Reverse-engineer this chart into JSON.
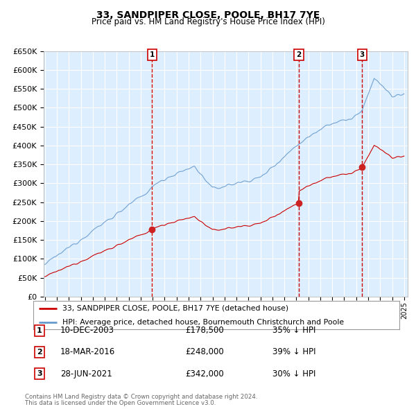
{
  "title": "33, SANDPIPER CLOSE, POOLE, BH17 7YE",
  "subtitle": "Price paid vs. HM Land Registry's House Price Index (HPI)",
  "ylim": [
    0,
    650000
  ],
  "yticks": [
    0,
    50000,
    100000,
    150000,
    200000,
    250000,
    300000,
    350000,
    400000,
    450000,
    500000,
    550000,
    600000,
    650000
  ],
  "ytick_labels": [
    "£0",
    "£50K",
    "£100K",
    "£150K",
    "£200K",
    "£250K",
    "£300K",
    "£350K",
    "£400K",
    "£450K",
    "£500K",
    "£550K",
    "£600K",
    "£650K"
  ],
  "xlim_start": 1994.9,
  "xlim_end": 2025.3,
  "background_color": "#ddeeff",
  "grid_color": "#ffffff",
  "sale_dates": [
    2003.94,
    2016.21,
    2021.49
  ],
  "sale_prices": [
    178500,
    248000,
    342000
  ],
  "sale_labels": [
    "1",
    "2",
    "3"
  ],
  "sale_date_strings": [
    "10-DEC-2003",
    "18-MAR-2016",
    "28-JUN-2021"
  ],
  "sale_price_strings": [
    "£178,500",
    "£248,000",
    "£342,000"
  ],
  "sale_pct_strings": [
    "35% ↓ HPI",
    "39% ↓ HPI",
    "30% ↓ HPI"
  ],
  "line_color_property": "#cc0000",
  "line_color_hpi": "#6699cc",
  "legend_label_property": "33, SANDPIPER CLOSE, POOLE, BH17 7YE (detached house)",
  "legend_label_hpi": "HPI: Average price, detached house, Bournemouth Christchurch and Poole",
  "footer1": "Contains HM Land Registry data © Crown copyright and database right 2024.",
  "footer2": "This data is licensed under the Open Government Licence v3.0."
}
